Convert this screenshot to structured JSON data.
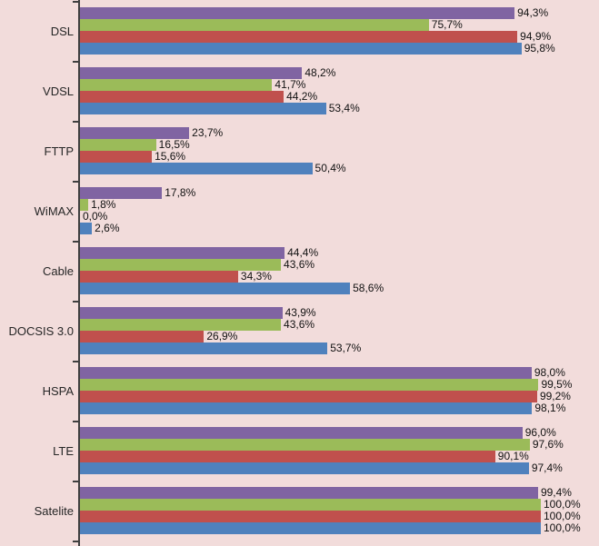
{
  "chart_data": {
    "type": "bar",
    "orientation": "horizontal",
    "title": "",
    "xlabel": "",
    "ylabel": "",
    "xlim": [
      0,
      100
    ],
    "grid": false,
    "legend": "none",
    "background_color": "#f2dcdb",
    "axis_color": "#3f3f3f",
    "value_label_format": "percent with comma decimal",
    "categories": [
      "DSL",
      "VDSL",
      "FTTP",
      "WiMAX",
      "Cable",
      "DOCSIS 3.0",
      "HSPA",
      "LTE",
      "Satelite"
    ],
    "series": [
      {
        "name": "purple",
        "color": "#8064a2",
        "values": [
          94.3,
          48.2,
          23.7,
          17.8,
          44.4,
          43.9,
          98.0,
          96.0,
          99.4
        ],
        "labels": [
          "94,3%",
          "48,2%",
          "23,7%",
          "17,8%",
          "44,4%",
          "43,9%",
          "98,0%",
          "96,0%",
          "99,4%"
        ]
      },
      {
        "name": "green",
        "color": "#9bbb59",
        "values": [
          75.7,
          41.7,
          16.5,
          1.8,
          43.6,
          43.6,
          99.5,
          97.6,
          100.0
        ],
        "labels": [
          "75,7%",
          "41,7%",
          "16,5%",
          "1,8%",
          "43,6%",
          "43,6%",
          "99,5%",
          "97,6%",
          "100,0%"
        ]
      },
      {
        "name": "red",
        "color": "#c0504d",
        "values": [
          94.9,
          44.2,
          15.6,
          0.0,
          34.3,
          26.9,
          99.2,
          90.1,
          100.0
        ],
        "labels": [
          "94,9%",
          "44,2%",
          "15,6%",
          "0,0%",
          "34,3%",
          "26,9%",
          "99,2%",
          "90,1%",
          "100,0%"
        ]
      },
      {
        "name": "blue",
        "color": "#4f81bd",
        "values": [
          95.8,
          53.4,
          50.4,
          2.6,
          58.6,
          53.7,
          98.1,
          97.4,
          100.0
        ],
        "labels": [
          "95,8%",
          "53,4%",
          "50,4%",
          "2,6%",
          "58,6%",
          "53,7%",
          "98,1%",
          "97,4%",
          "100,0%"
        ]
      }
    ]
  }
}
